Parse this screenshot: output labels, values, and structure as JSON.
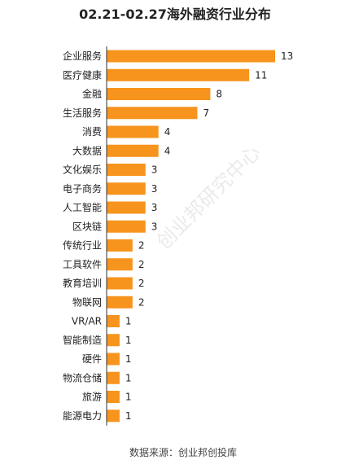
{
  "chart_data": {
    "type": "bar",
    "orientation": "horizontal",
    "title": "02.21-02.27海外融资行业分布",
    "source": "数据来源：创业邦创投库",
    "watermark": "创业邦研究中心",
    "categories": [
      "企业服务",
      "医疗健康",
      "金融",
      "生活服务",
      "消费",
      "大数据",
      "文化娱乐",
      "电子商务",
      "人工智能",
      "区块链",
      "传统行业",
      "工具软件",
      "教育培训",
      "物联网",
      "VR/AR",
      "智能制造",
      "硬件",
      "物流仓储",
      "旅游",
      "能源电力"
    ],
    "values": [
      13,
      11,
      8,
      7,
      4,
      4,
      3,
      3,
      3,
      3,
      2,
      2,
      2,
      2,
      1,
      1,
      1,
      1,
      1,
      1
    ],
    "data_labels": true,
    "xlim": [
      0,
      13
    ],
    "grid": false,
    "legend": "none",
    "colors": {
      "bar": "#f7941d",
      "axis": "#333333",
      "text": "#222222",
      "watermark": "#d9d9d9"
    }
  }
}
